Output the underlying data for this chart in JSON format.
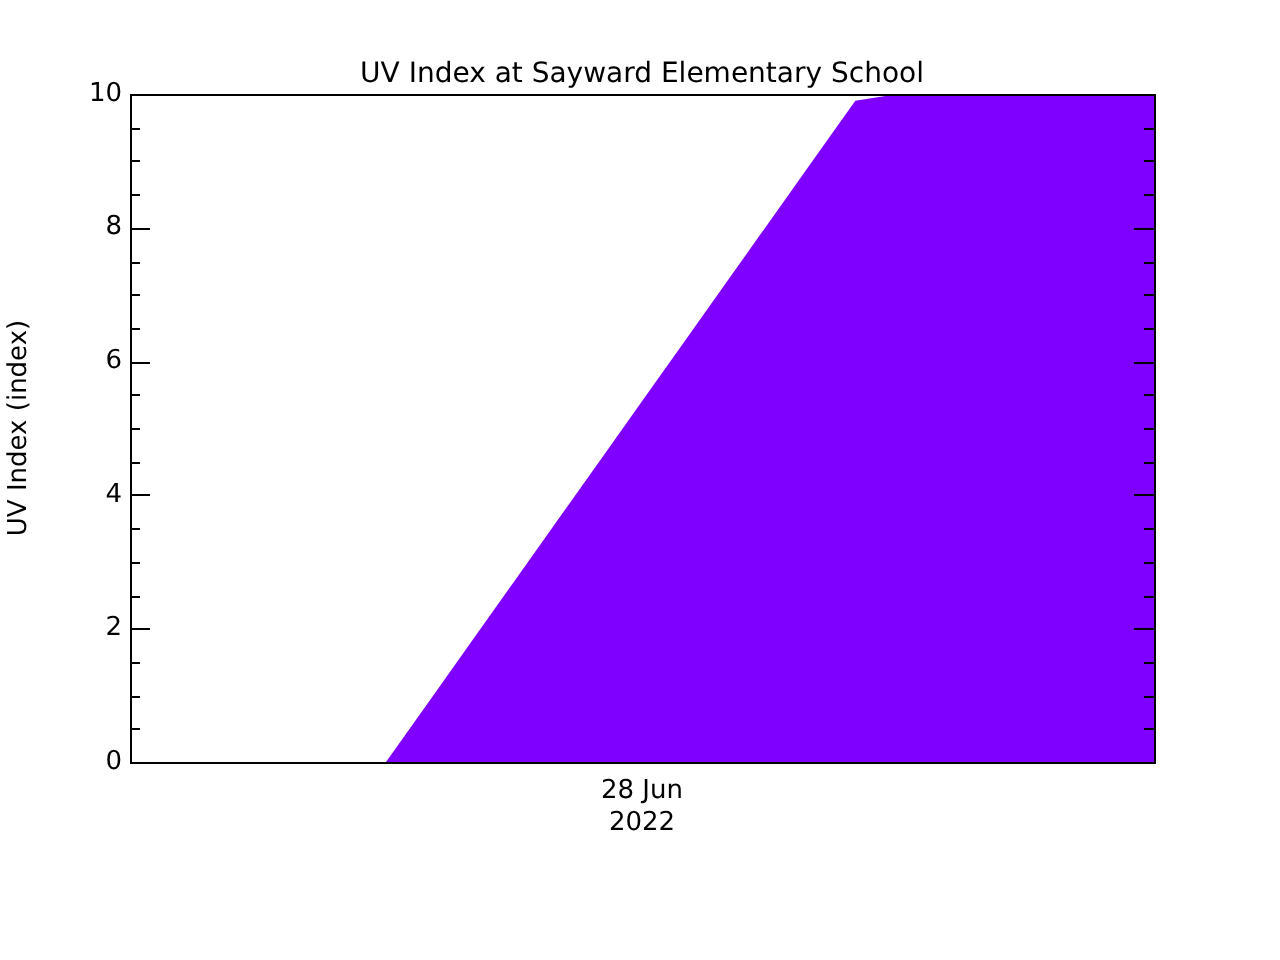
{
  "chart_data": {
    "type": "area",
    "title": "UV Index at Sayward Elementary School",
    "ylabel": "UV Index (index)",
    "categories": [
      null,
      null,
      null,
      null,
      null,
      null,
      null,
      null,
      null,
      null,
      null,
      null,
      null,
      null,
      null,
      null,
      null,
      null,
      null,
      null,
      null,
      null,
      null,
      null,
      null
    ],
    "series": [
      {
        "color": "#7f00ff",
        "values": [
          0,
          0,
          0,
          0,
          0,
          0,
          0,
          0.9,
          1.8,
          2.7,
          3.6,
          4.5,
          5.4,
          6.3,
          7.2,
          8.1,
          9,
          9.9,
          10,
          10,
          10,
          10,
          10,
          10,
          10
        ]
      }
    ],
    "ylim": [
      0,
      10
    ],
    "yticks": [
      0,
      2,
      4,
      6,
      8,
      10
    ],
    "grid": false,
    "legend": false,
    "annotations": [
      "28 Jun 2022"
    ]
  }
}
